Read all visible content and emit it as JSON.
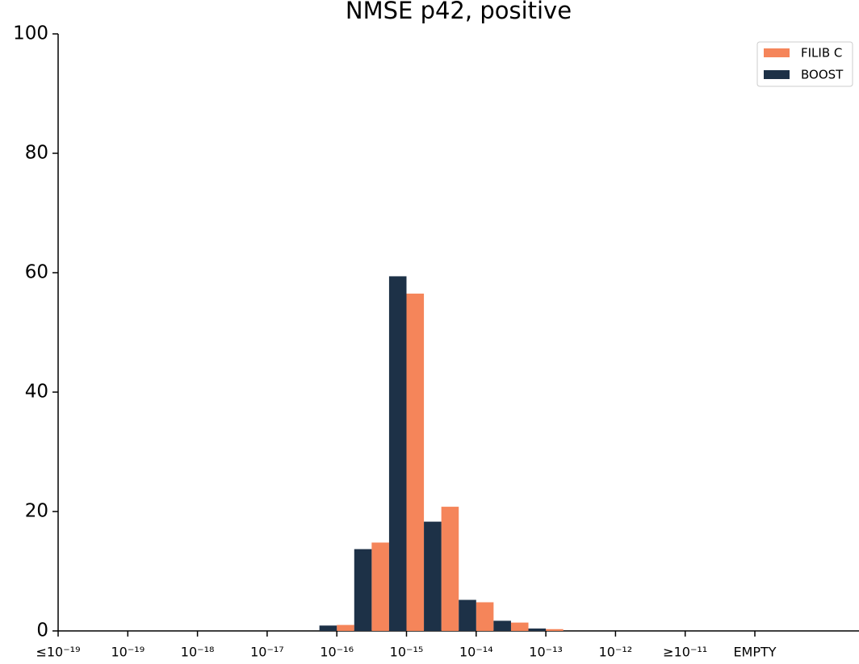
{
  "chart_data": {
    "type": "bar",
    "title": "NMSE p42, positive",
    "categories": [
      "≤10⁻¹⁹",
      null,
      "10⁻¹⁹",
      null,
      "10⁻¹⁸",
      null,
      "10⁻¹⁷",
      null,
      "10⁻¹⁶",
      null,
      "10⁻¹⁵",
      null,
      "10⁻¹⁴",
      null,
      "10⁻¹³",
      null,
      "10⁻¹²",
      null,
      "≥10⁻¹¹",
      null,
      "EMPTY"
    ],
    "series": [
      {
        "name": "FILIB C",
        "color": "#f5855a",
        "values": [
          0,
          0,
          0,
          0,
          0,
          0,
          0,
          0,
          1.0,
          14.8,
          56.5,
          20.8,
          4.8,
          1.4,
          0.3,
          0,
          0,
          0,
          0,
          0,
          0
        ]
      },
      {
        "name": "BOOST",
        "color": "#1d3147",
        "values": [
          0,
          0,
          0,
          0,
          0,
          0,
          0,
          0,
          0.9,
          13.7,
          59.4,
          18.3,
          5.2,
          1.7,
          0.4,
          0,
          0,
          0,
          0,
          0,
          0
        ]
      }
    ],
    "ylim": [
      0,
      100
    ],
    "yticks": [
      0,
      20,
      40,
      60,
      80,
      100
    ],
    "grid": false,
    "legend": "upper right"
  }
}
